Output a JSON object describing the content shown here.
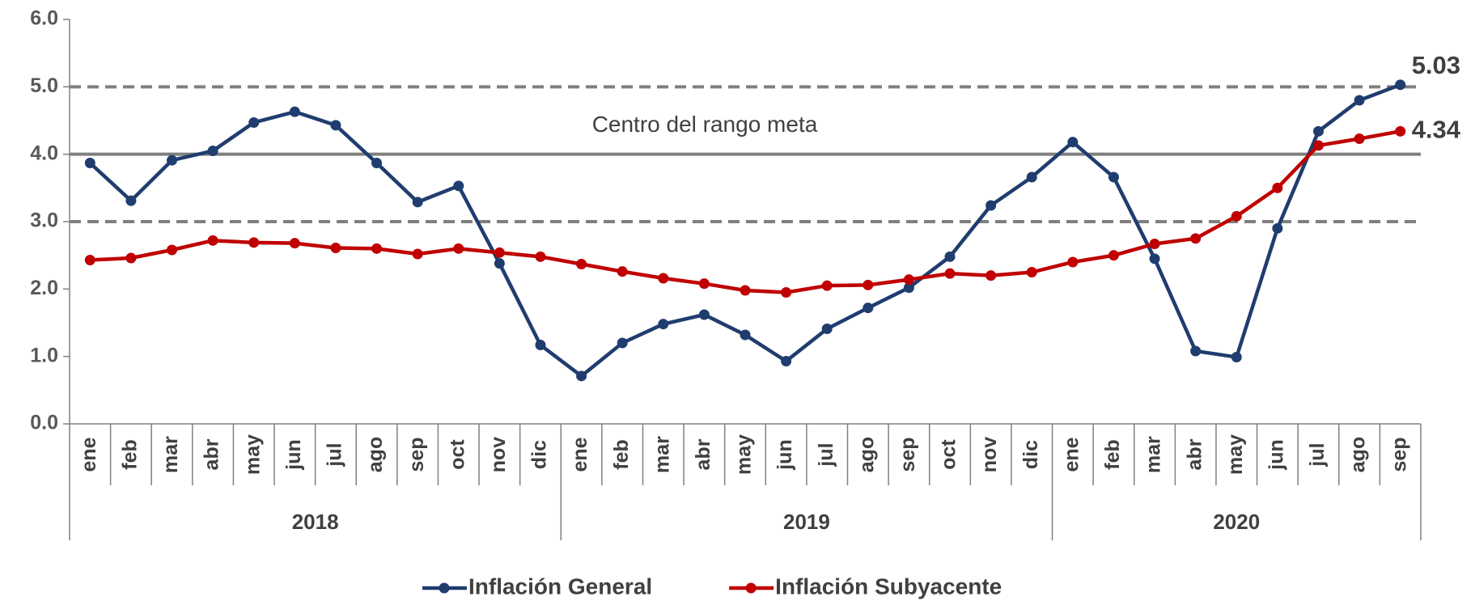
{
  "chart_data": {
    "type": "line",
    "categories": [
      "ene",
      "feb",
      "mar",
      "abr",
      "may",
      "jun",
      "jul",
      "ago",
      "sep",
      "oct",
      "nov",
      "dic",
      "ene",
      "feb",
      "mar",
      "abr",
      "may",
      "jun",
      "jul",
      "ago",
      "sep",
      "oct",
      "nov",
      "dic",
      "ene",
      "feb",
      "mar",
      "abr",
      "may",
      "jun",
      "jul",
      "ago",
      "sep"
    ],
    "category_groups": [
      {
        "label": "2018",
        "span": 12
      },
      {
        "label": "2019",
        "span": 12
      },
      {
        "label": "2020",
        "span": 9
      }
    ],
    "series": [
      {
        "name": "Inflación General",
        "color": "#1f3d6e",
        "values": [
          3.87,
          3.31,
          3.91,
          4.05,
          4.47,
          4.63,
          4.43,
          3.87,
          3.29,
          3.53,
          2.38,
          1.17,
          0.71,
          1.2,
          1.48,
          1.62,
          1.32,
          0.93,
          1.41,
          1.72,
          2.02,
          2.48,
          3.24,
          3.66,
          4.18,
          3.66,
          2.45,
          1.08,
          0.99,
          2.9,
          4.34,
          4.8,
          5.03
        ]
      },
      {
        "name": "Inflación Subyacente",
        "color": "#c00000",
        "values": [
          2.43,
          2.46,
          2.58,
          2.72,
          2.69,
          2.68,
          2.61,
          2.6,
          2.52,
          2.6,
          2.54,
          2.48,
          2.37,
          2.26,
          2.16,
          2.08,
          1.98,
          1.95,
          2.05,
          2.06,
          2.14,
          2.23,
          2.2,
          2.25,
          2.4,
          2.5,
          2.67,
          2.75,
          3.08,
          3.5,
          4.13,
          4.23,
          4.34
        ]
      }
    ],
    "ylim": [
      0,
      6
    ],
    "yticks": [
      {
        "value": 0,
        "label": "0.0"
      },
      {
        "value": 1,
        "label": "1.0"
      },
      {
        "value": 2,
        "label": "2.0"
      },
      {
        "value": 3,
        "label": "3.0"
      },
      {
        "value": 4,
        "label": "4.0"
      },
      {
        "value": 5,
        "label": "5.0"
      },
      {
        "value": 6,
        "label": "6.0"
      }
    ],
    "reference_lines": [
      {
        "value": 5,
        "style": "dashed",
        "color": "#808080"
      },
      {
        "value": 3,
        "style": "dashed",
        "color": "#808080"
      },
      {
        "value": 4,
        "style": "solid",
        "color": "#808080",
        "label": "Centro del rango meta"
      }
    ],
    "legend": "bottom"
  }
}
